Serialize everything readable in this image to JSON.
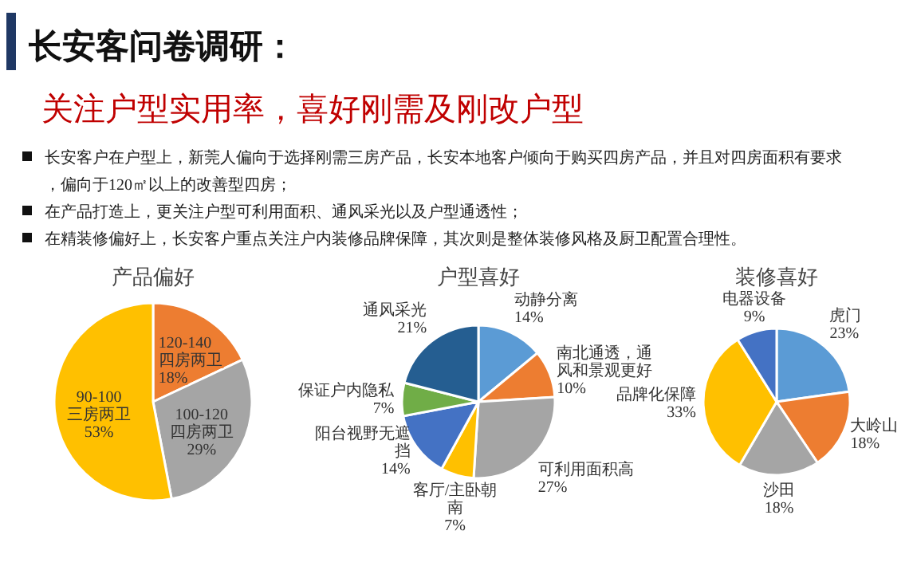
{
  "chart_data": [
    {
      "type": "other",
      "title": "长安客问卷调研：",
      "subtitle": "关注户型实用率，喜好刚需及刚改户型",
      "annotations": [
        "长安客户在户型上，新莞人偏向于选择刚需三房产品，长安本地客户倾向于购买四房产品，并且对四房面积有要求，偏向于120㎡以上的改善型四房；",
        "在产品打造上，更关注户型可利用面积、通风采光以及户型通透性；",
        "在精装修偏好上，长安客户重点关注户内装修品牌保障，其次则是整体装修风格及厨卫配置合理性。"
      ]
    },
    {
      "type": "pie",
      "title": "产品偏好",
      "categories": [
        "120-140四房两卫",
        "100-120四房两卫",
        "90-100三房两卫"
      ],
      "values": [
        18,
        29,
        53
      ],
      "value_labels": [
        "18%",
        "29%",
        "53%"
      ],
      "colors": [
        "#ed7d31",
        "#a5a5a5",
        "#ffc000"
      ]
    },
    {
      "type": "pie",
      "title": "户型喜好",
      "categories": [
        "动静分离",
        "南北通透，通风和景观更好",
        "可利用面积高",
        "客厅/主卧朝南",
        "阳台视野无遮挡",
        "保证户内隐私",
        "通风采光"
      ],
      "values": [
        14,
        10,
        27,
        7,
        14,
        7,
        21
      ],
      "value_labels": [
        "14%",
        "10%",
        "27%",
        "7%",
        "14%",
        "7%",
        "21%"
      ],
      "colors": [
        "#5b9bd5",
        "#ed7d31",
        "#a5a5a5",
        "#ffc000",
        "#4472c4",
        "#70ad47",
        "#255e91"
      ]
    },
    {
      "type": "pie",
      "title": "装修喜好",
      "categories": [
        "虎门",
        "大岭山",
        "沙田",
        "品牌化保障",
        "电器设备"
      ],
      "values": [
        23,
        18,
        18,
        33,
        9
      ],
      "value_labels": [
        "23%",
        "18%",
        "18%",
        "33%",
        "9%"
      ],
      "colors": [
        "#5b9bd5",
        "#ed7d31",
        "#a5a5a5",
        "#ffc000",
        "#4472c4"
      ]
    }
  ]
}
